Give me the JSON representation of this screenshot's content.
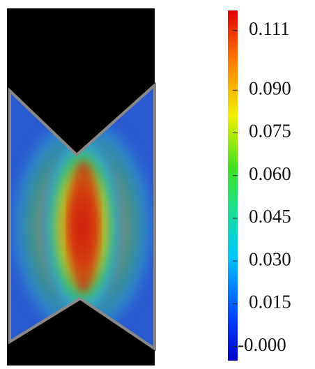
{
  "colorbar": {
    "lim": [
      -0.005,
      0.118
    ],
    "ticks": [
      0.111,
      {
        "value": 0.09,
        "label": "0.090"
      },
      0.075,
      {
        "value": 0.06,
        "label": "0.060"
      },
      0.045,
      {
        "value": 0.03,
        "label": "0.030"
      },
      0.015,
      {
        "value": 0,
        "label": "-0.000"
      }
    ]
  }
}
